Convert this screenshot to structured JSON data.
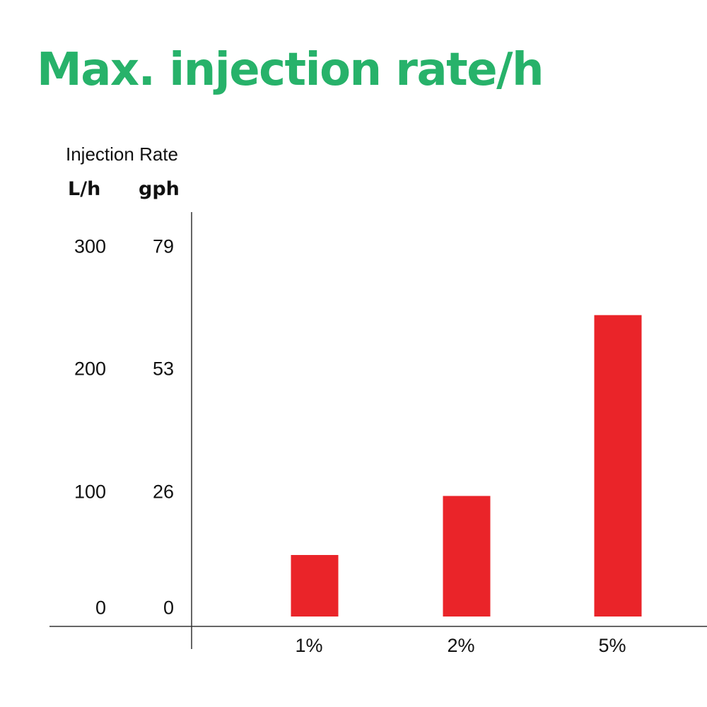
{
  "title": "Max. injection rate/h",
  "colors": {
    "title": "#27b26a",
    "bar": "#ea2429",
    "axis": "#333333"
  },
  "chart_data": {
    "type": "bar",
    "title": "Max. injection rate/h",
    "ylabel": "Injection Rate",
    "units": {
      "primary": "L/h",
      "secondary": "gph"
    },
    "categories": [
      "1%",
      "2%",
      "5%"
    ],
    "values": [
      50,
      98,
      245
    ],
    "ylim": [
      0,
      300
    ],
    "yticks_primary": [
      "300",
      "200",
      "100",
      "0"
    ],
    "yticks_secondary": [
      "79",
      "53",
      "26",
      "0"
    ],
    "ytick_values": [
      300,
      200,
      100,
      0
    ],
    "grid": false,
    "legend": "none"
  }
}
